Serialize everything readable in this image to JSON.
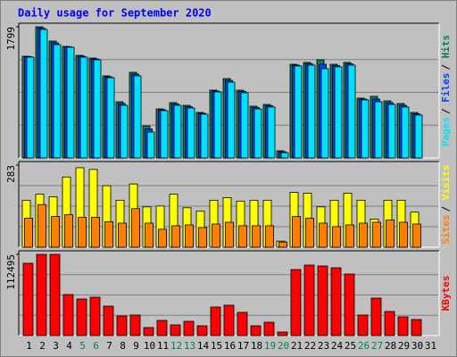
{
  "title": "Daily usage for September 2020",
  "separator": "/",
  "chart_data": [
    {
      "type": "bar",
      "ylim": [
        0,
        1799
      ],
      "yticks": [
        1799
      ],
      "series": [
        {
          "name": "Hits",
          "color": "#00805c",
          "values": [
            1395,
            1799,
            1603,
            1530,
            1407,
            1370,
            1126,
            771,
            1175,
            440,
            673,
            759,
            722,
            624,
            930,
            1089,
            930,
            710,
            734,
            98,
            1285,
            1310,
            1346,
            1285,
            1310,
            820,
            845,
            783,
            747,
            624,
            null
          ]
        },
        {
          "name": "Files",
          "color": "#0040ff",
          "values": [
            1389,
            1780,
            1578,
            1524,
            1395,
            1358,
            1113,
            746,
            1150,
            397,
            661,
            740,
            703,
            612,
            918,
            1064,
            912,
            691,
            716,
            85,
            1273,
            1291,
            1285,
            1267,
            1291,
            808,
            808,
            758,
            722,
            606,
            null
          ]
        },
        {
          "name": "Pages",
          "color": "#00e0ff",
          "values": [
            1383,
            1762,
            1554,
            1518,
            1383,
            1346,
            1101,
            722,
            1126,
            355,
            649,
            722,
            685,
            600,
            906,
            1040,
            894,
            673,
            698,
            73,
            1261,
            1273,
            1224,
            1249,
            1273,
            796,
            771,
            734,
            698,
            588,
            null
          ]
        }
      ]
    },
    {
      "type": "bar",
      "ylim": [
        0,
        283
      ],
      "yticks": [
        283
      ],
      "series": [
        {
          "name": "Visits",
          "color": "#ffff00",
          "values": [
            162,
            183,
            174,
            242,
            274,
            268,
            212,
            162,
            218,
            139,
            142,
            183,
            136,
            124,
            162,
            171,
            159,
            162,
            162,
            21,
            189,
            186,
            139,
            162,
            186,
            162,
            97,
            162,
            162,
            121,
            null
          ]
        },
        {
          "name": "Sites",
          "color": "#ff8000",
          "values": [
            100,
            147,
            106,
            112,
            103,
            103,
            88,
            83,
            133,
            83,
            62,
            74,
            77,
            68,
            80,
            86,
            74,
            74,
            74,
            18,
            106,
            100,
            83,
            71,
            77,
            83,
            86,
            94,
            86,
            80,
            null
          ]
        }
      ]
    },
    {
      "type": "bar",
      "ylim": [
        0,
        112495
      ],
      "yticks": [
        112495
      ],
      "categories": [
        "1",
        "2",
        "3",
        "4",
        "5",
        "6",
        "7",
        "8",
        "9",
        "10",
        "11",
        "12",
        "13",
        "14",
        "15",
        "16",
        "17",
        "18",
        "19",
        "20",
        "21",
        "22",
        "23",
        "24",
        "25",
        "26",
        "27",
        "28",
        "29",
        "30",
        "31"
      ],
      "category_colors": [
        "#000000",
        "#000000",
        "#000000",
        "#000000",
        "#00805c",
        "#00805c",
        "#000000",
        "#000000",
        "#000000",
        "#000000",
        "#000000",
        "#00805c",
        "#00805c",
        "#000000",
        "#000000",
        "#000000",
        "#000000",
        "#000000",
        "#00805c",
        "#00805c",
        "#000000",
        "#000000",
        "#000000",
        "#000000",
        "#000000",
        "#00805c",
        "#00805c",
        "#000000",
        "#000000",
        "#000000",
        "#000000"
      ],
      "series": [
        {
          "name": "KBytes",
          "color": "#ff0000",
          "values": [
            100116,
            112495,
            112495,
            56856,
            50676,
            53148,
            40788,
            27192,
            28428,
            11124,
            21012,
            14832,
            19776,
            13596,
            39552,
            42024,
            32136,
            13596,
            18540,
            4944,
            91464,
            97644,
            96408,
            93936,
            85284,
            28428,
            51912,
            33372,
            25956,
            22248,
            null
          ]
        }
      ]
    }
  ]
}
